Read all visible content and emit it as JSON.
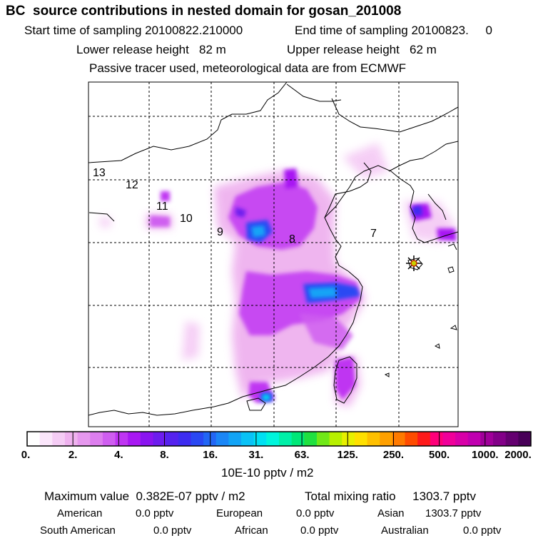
{
  "header": {
    "title": "BC  source contributions in nested domain for gosan_201008",
    "start": "Start time of sampling 20100822.210000",
    "end": "End time of sampling 20100823.     0",
    "lower": "Lower release height   82 m",
    "upper": "Upper release height   62 m",
    "note": "Passive tracer used, meteorological data are from ECMWF"
  },
  "chart_data": {
    "type": "heatmap",
    "title": "BC  source contributions in nested domain for gosan_201008",
    "colorbar": {
      "ticks": [
        "0.",
        "2.",
        "4.",
        "8.",
        "16.",
        "31.",
        "63.",
        "125.",
        "250.",
        "500.",
        "1000.",
        "2000."
      ],
      "colors": [
        "#ffffff",
        "#fbe6fb",
        "#f5ccf5",
        "#efb2ef",
        "#e698ee",
        "#dd7eee",
        "#cf5ef0",
        "#bf35f2",
        "#a818f3",
        "#8a14f0",
        "#6d1cee",
        "#5522ee",
        "#3d2cf0",
        "#2a48f3",
        "#2266f5",
        "#1a86f6",
        "#12a4f6",
        "#0ac2f6",
        "#00e0f2",
        "#00f5dc",
        "#00f0a8",
        "#00e878",
        "#20e040",
        "#70e818",
        "#b8f000",
        "#e8f000",
        "#ffe000",
        "#ffc000",
        "#ffa000",
        "#ff7a00",
        "#ff4c00",
        "#ff1a1a",
        "#ff007a",
        "#f0009a",
        "#d800a8",
        "#c000b0",
        "#a0009a",
        "#820088",
        "#640070",
        "#480058"
      ],
      "units": "10E-10 pptv / m2"
    },
    "region_labels": [
      "13",
      "12",
      "11",
      "10",
      "9",
      "8",
      "7"
    ],
    "receptor": "gosan"
  },
  "footer": {
    "max_value": "Maximum value  0.382E-07 pptv / m2",
    "total": "Total mixing ratio     1303.7 pptv",
    "rows": [
      [
        {
          "name": "American",
          "val": "0.0 pptv"
        },
        {
          "name": "European",
          "val": "0.0 pptv"
        },
        {
          "name": "Asian",
          "val": "1303.7 pptv"
        }
      ],
      [
        {
          "name": "South American",
          "val": "0.0 pptv"
        },
        {
          "name": "African",
          "val": "0.0 pptv"
        },
        {
          "name": "Australian",
          "val": "0.0 pptv"
        }
      ]
    ]
  }
}
